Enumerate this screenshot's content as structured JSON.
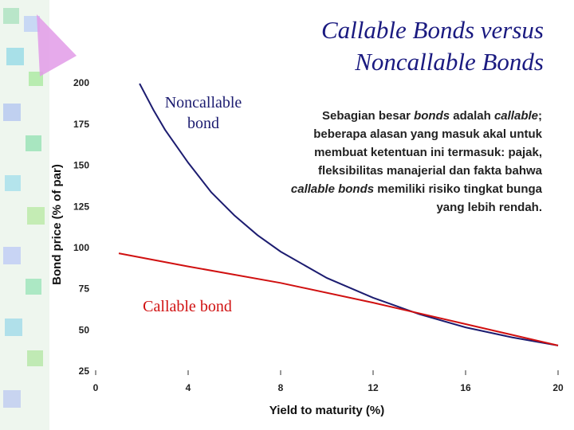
{
  "chart_data": {
    "type": "line",
    "title": "Callable Bonds versus Noncallable Bonds",
    "annotation": [
      {
        "text": "Sebagian besar ",
        "italic": false
      },
      {
        "text": "bonds",
        "italic": true
      },
      {
        "text": " adalah ",
        "italic": false
      },
      {
        "text": "callable",
        "italic": true
      },
      {
        "text": "; beberapa alasan yang masuk akal untuk membuat ketentuan ini termasuk: pajak, fleksibilitas manajerial dan fakta bahwa ",
        "italic": false
      },
      {
        "text": "callable bonds",
        "italic": true
      },
      {
        "text": " memiliki risiko tingkat bunga yang lebih rendah.",
        "italic": false
      }
    ],
    "x_label": "Yield to maturity (%)",
    "y_label": "Bond price (% of par)",
    "xlim": [
      0,
      20
    ],
    "xticks": [
      0,
      4,
      8,
      12,
      16,
      20
    ],
    "ylim": [
      25,
      200
    ],
    "yticks": [
      25,
      50,
      75,
      100,
      125,
      150,
      175,
      200
    ],
    "series": [
      {
        "name": "Noncallable bond",
        "color": "#1c1c70",
        "x": [
          1.9,
          2.5,
          3,
          4,
          5,
          6,
          7,
          8,
          10,
          12,
          14,
          16,
          18,
          20
        ],
        "values": [
          200,
          184,
          172,
          152,
          134,
          120,
          108,
          98,
          82,
          70,
          60,
          52,
          46,
          41
        ]
      },
      {
        "name": "Callable bond",
        "color": "#d01010",
        "x": [
          1,
          4,
          8,
          12,
          16,
          20
        ],
        "values": [
          97,
          89,
          79,
          67,
          54,
          41
        ]
      }
    ]
  }
}
